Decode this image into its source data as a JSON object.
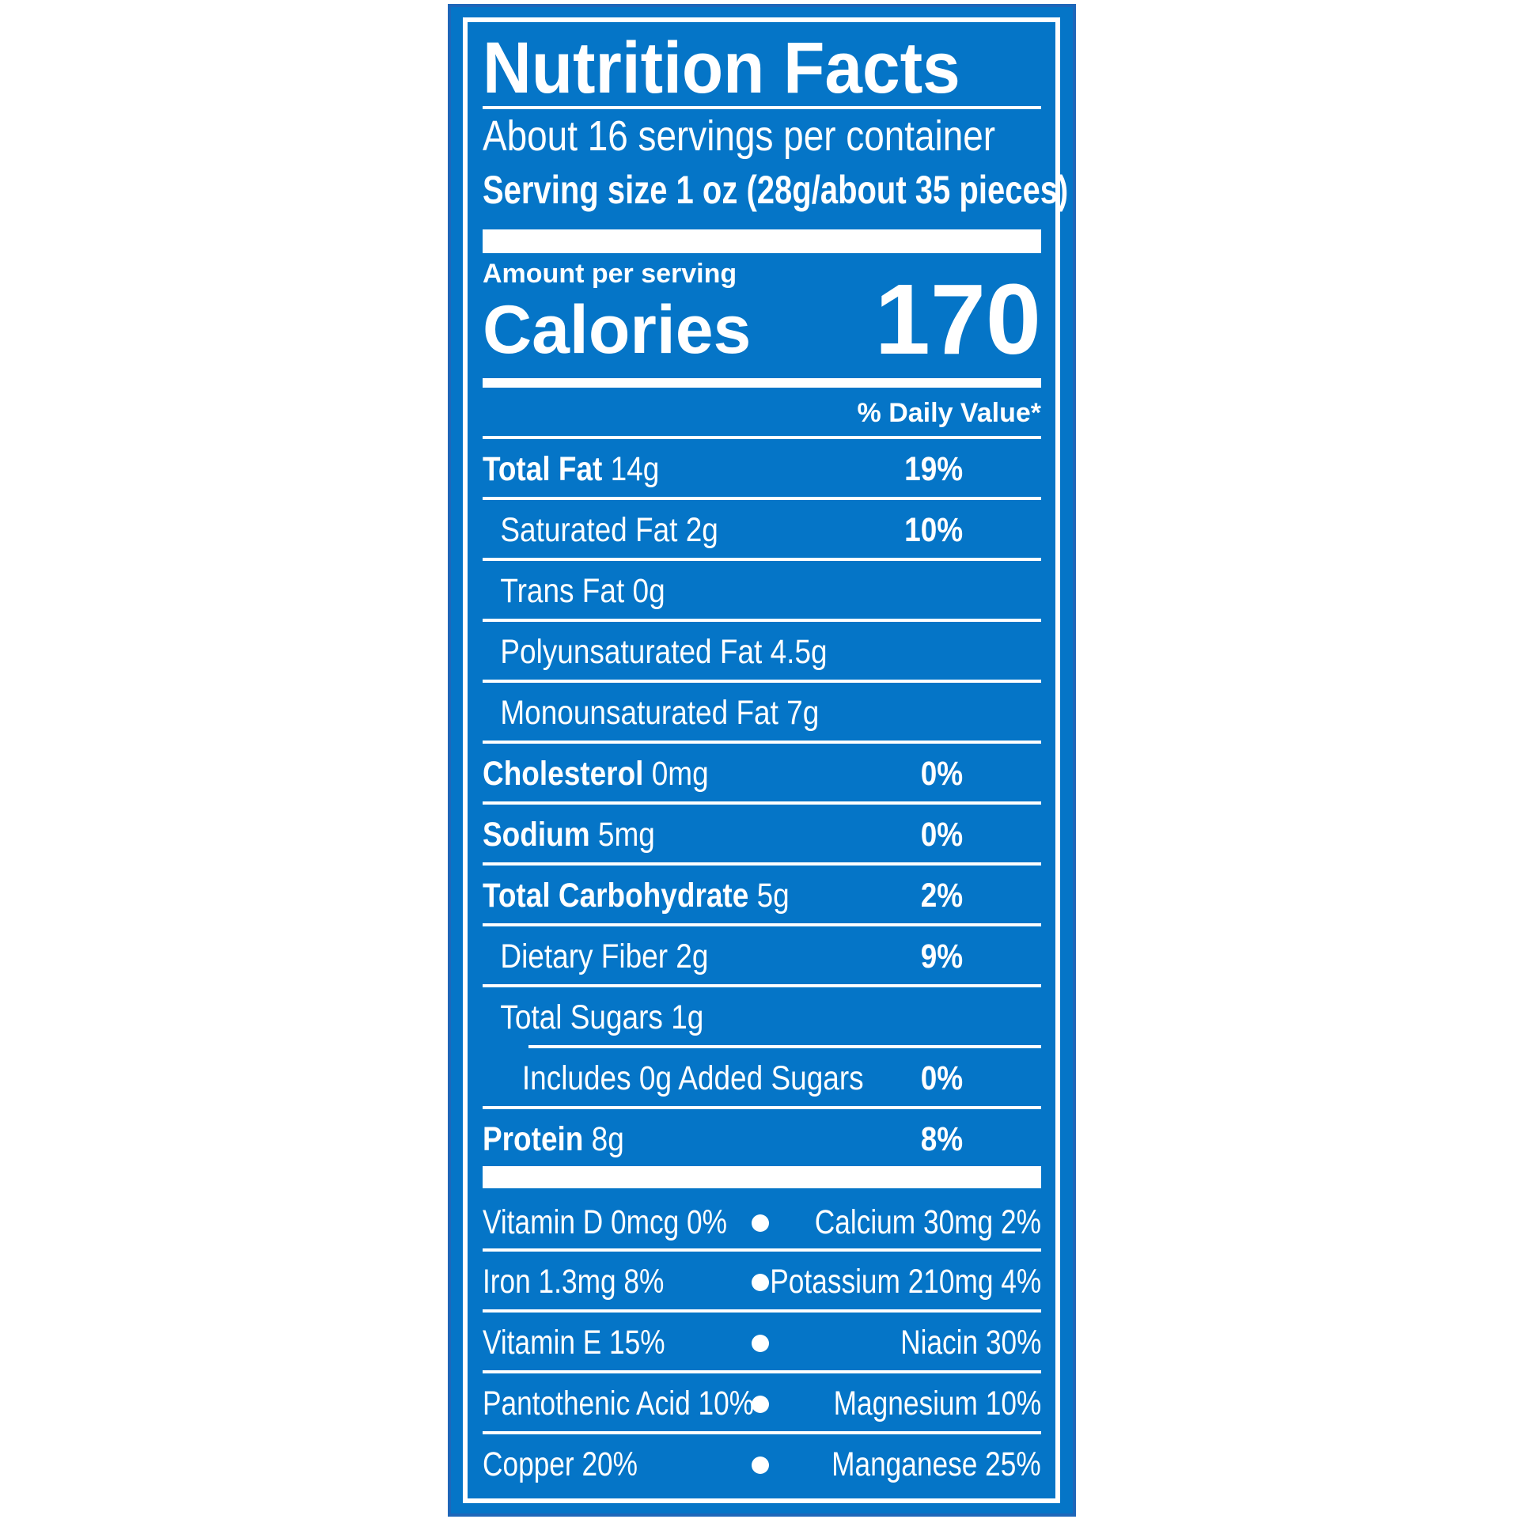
{
  "title": "Nutrition Facts",
  "servings_per_container": "About 16 servings per container",
  "serving_size": "Serving size 1 oz (28g/about 35 pieces)",
  "amount_per_serving": "Amount per serving",
  "calories_label": "Calories",
  "calories_value": "170",
  "daily_value_header": "% Daily Value*",
  "nutrients": [
    {
      "name": "Total Fat",
      "amount": "14g",
      "dv": "19%"
    },
    {
      "name": "Saturated Fat",
      "amount": "2g",
      "dv": "10%"
    },
    {
      "name": "Trans Fat",
      "amount": "0g",
      "dv": ""
    },
    {
      "name": "Polyunsaturated Fat",
      "amount": "4.5g",
      "dv": ""
    },
    {
      "name": "Monounsaturated Fat",
      "amount": "7g",
      "dv": ""
    },
    {
      "name": "Cholesterol",
      "amount": "0mg",
      "dv": "0%"
    },
    {
      "name": "Sodium",
      "amount": "5mg",
      "dv": "0%"
    },
    {
      "name": "Total Carbohydrate",
      "amount": "5g",
      "dv": "2%"
    },
    {
      "name": "Dietary Fiber",
      "amount": "2g",
      "dv": "9%"
    },
    {
      "name": "Total Sugars",
      "amount": "1g",
      "dv": ""
    },
    {
      "name": "Includes 0g Added Sugars",
      "amount": "",
      "dv": "0%"
    },
    {
      "name": "Protein",
      "amount": "8g",
      "dv": "8%"
    }
  ],
  "vitamins": [
    {
      "left": "Vitamin D 0mcg 0%",
      "right": "Calcium 30mg 2%"
    },
    {
      "left": "Iron 1.3mg 8%",
      "right": "Potassium 210mg 4%"
    },
    {
      "left": "Vitamin E 15%",
      "right": "Niacin 30%"
    },
    {
      "left": "Pantothenic Acid 10%",
      "right": "Magnesium 10%"
    },
    {
      "left": "Copper 20%",
      "right": "Manganese 25%"
    }
  ],
  "colors": {
    "label_blue": "#0575c7",
    "border_blue": "#1e66b9",
    "text": "#ffffff"
  }
}
